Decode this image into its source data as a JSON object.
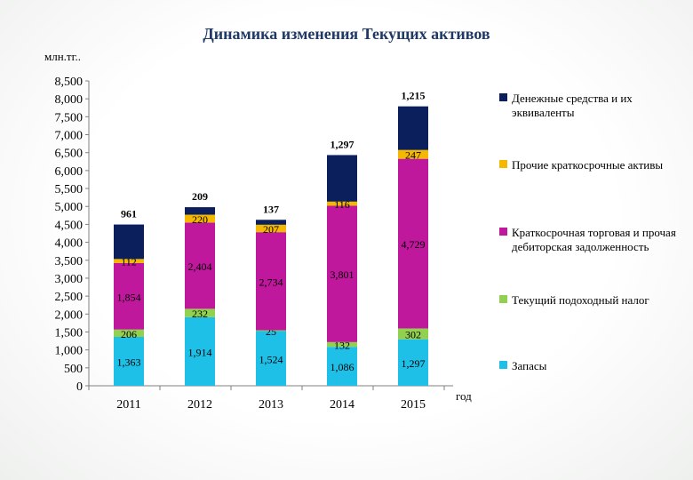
{
  "chart_data": {
    "type": "bar",
    "stacked": true,
    "title": "Динамика изменения Текущих активов",
    "ylabel": "млн.тг..",
    "xlabel": "год",
    "categories": [
      "2011",
      "2012",
      "2013",
      "2014",
      "2015"
    ],
    "ylim": [
      0,
      8500
    ],
    "yticks": [
      0,
      500,
      1000,
      1500,
      2000,
      2500,
      3000,
      3500,
      4000,
      4500,
      5000,
      5500,
      6000,
      6500,
      7000,
      7500,
      8000,
      8500
    ],
    "ytick_labels": [
      "0",
      "500",
      "1,000",
      "1,500",
      "2,000",
      "2,500",
      "3,000",
      "3,500",
      "4,000",
      "4,500",
      "5,000",
      "5,500",
      "6,000",
      "6,500",
      "7,000",
      "7,500",
      "8,000",
      "8,500"
    ],
    "series": [
      {
        "name": "Запасы",
        "color": "#1fc0e8",
        "values": [
          1363,
          1914,
          1524,
          1086,
          1297
        ],
        "labels": [
          "1,363",
          "1,914",
          "1,524",
          "1,086",
          "1,297"
        ]
      },
      {
        "name": "Текущий подоходный налог",
        "color": "#92d050",
        "values": [
          206,
          232,
          25,
          132,
          302
        ],
        "labels": [
          "206",
          "232",
          "25",
          "132",
          "302"
        ]
      },
      {
        "name": "Краткосрочная торговая и прочая дебиторская задолженность",
        "color": "#c0189c",
        "values": [
          1854,
          2404,
          2734,
          3801,
          4729
        ],
        "labels": [
          "1,854",
          "2,404",
          "2,734",
          "3,801",
          "4,729"
        ]
      },
      {
        "name": "Прочие краткосрочные активы",
        "color": "#f5b800",
        "values": [
          112,
          220,
          207,
          116,
          247
        ],
        "labels": [
          "112",
          "220",
          "207",
          "116",
          "247"
        ]
      },
      {
        "name": "Денежные средства и их эквиваленты",
        "color": "#0a1f5c",
        "values": [
          961,
          209,
          137,
          1297,
          1215
        ],
        "labels": [
          "961",
          "209",
          "137",
          "1,297",
          "1,215"
        ]
      }
    ],
    "legend_position": "right",
    "grid": false
  }
}
